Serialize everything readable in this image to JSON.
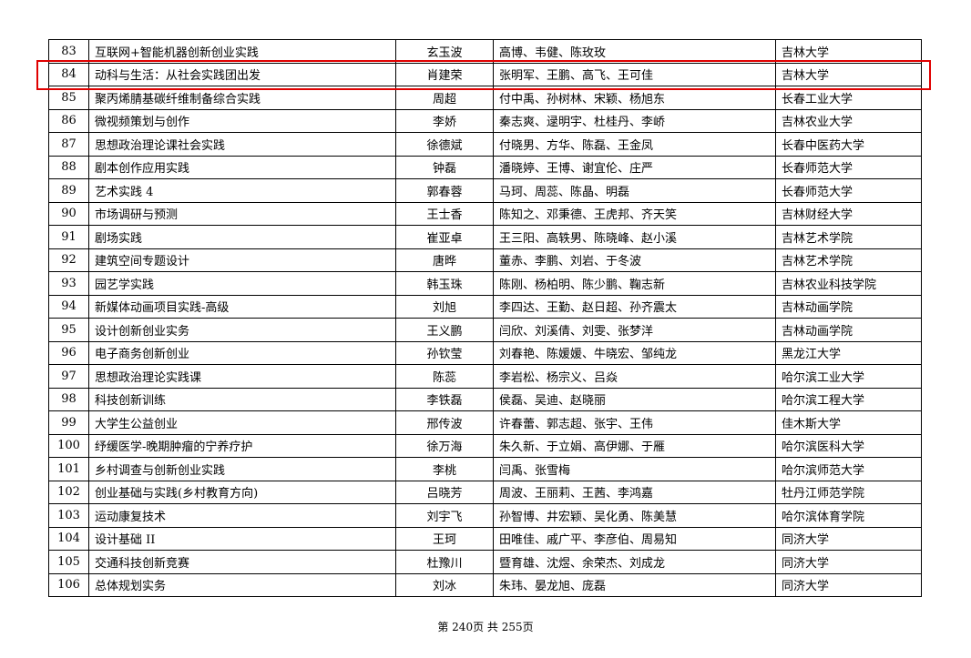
{
  "highlight_color": "#e00000",
  "highlighted_row": "84",
  "rows": [
    [
      "83",
      "互联网+智能机器创新创业实践",
      "玄玉波",
      "高博、韦健、陈玫玫",
      "吉林大学"
    ],
    [
      "84",
      "动科与生活：从社会实践团出发",
      "肖建荣",
      "张明军、王鹏、高飞、王可佳",
      "吉林大学"
    ],
    [
      "85",
      "聚丙烯腈基碳纤维制备综合实践",
      "周超",
      "付中禹、孙树林、宋颖、杨旭东",
      "长春工业大学"
    ],
    [
      "86",
      "微视频策划与创作",
      "李娇",
      "秦志爽、逯明宇、杜桂丹、李峤",
      "吉林农业大学"
    ],
    [
      "87",
      "思想政治理论课社会实践",
      "徐德斌",
      "付晓男、方华、陈磊、王金凤",
      "长春中医药大学"
    ],
    [
      "88",
      "剧本创作应用实践",
      "钟磊",
      "潘晓婷、王博、谢宜伦、庄严",
      "长春师范大学"
    ],
    [
      "89",
      "艺术实践 4",
      "郭春蓉",
      "马珂、周蕊、陈晶、明磊",
      "长春师范大学"
    ],
    [
      "90",
      "市场调研与预测",
      "王士香",
      "陈知之、邓秉德、王虎邦、齐天笑",
      "吉林财经大学"
    ],
    [
      "91",
      "剧场实践",
      "崔亚卓",
      "王三阳、高轶男、陈晓峰、赵小溪",
      "吉林艺术学院"
    ],
    [
      "92",
      "建筑空间专题设计",
      "唐晔",
      "董赤、李鹏、刘岩、于冬波",
      "吉林艺术学院"
    ],
    [
      "93",
      "园艺学实践",
      "韩玉珠",
      "陈刚、杨柏明、陈少鹏、鞠志新",
      "吉林农业科技学院"
    ],
    [
      "94",
      "新媒体动画项目实践-高级",
      "刘旭",
      "李四达、王勤、赵日超、孙齐震太",
      "吉林动画学院"
    ],
    [
      "95",
      "设计创新创业实务",
      "王义鹏",
      "闫欣、刘溪倩、刘雯、张梦洋",
      "吉林动画学院"
    ],
    [
      "96",
      "电子商务创新创业",
      "孙钦莹",
      "刘春艳、陈媛媛、牛晓宏、邹纯龙",
      "黑龙江大学"
    ],
    [
      "97",
      "思想政治理论实践课",
      "陈蕊",
      "李岩松、杨宗义、吕焱",
      "哈尔滨工业大学"
    ],
    [
      "98",
      "科技创新训练",
      "李铁磊",
      "侯磊、吴迪、赵晓丽",
      "哈尔滨工程大学"
    ],
    [
      "99",
      "大学生公益创业",
      "邢传波",
      "许春蕾、郭志超、张宇、王伟",
      "佳木斯大学"
    ],
    [
      "100",
      "纾缓医学-晚期肿瘤的宁养疗护",
      "徐万海",
      "朱久新、于立娟、高伊娜、于雁",
      "哈尔滨医科大学"
    ],
    [
      "101",
      "乡村调查与创新创业实践",
      "李桃",
      "闫禹、张雪梅",
      "哈尔滨师范大学"
    ],
    [
      "102",
      "创业基础与实践(乡村教育方向)",
      "吕晓芳",
      "周波、王丽莉、王茜、李鸿嘉",
      "牡丹江师范学院"
    ],
    [
      "103",
      "运动康复技术",
      "刘宇飞",
      "孙智博、井宏颖、吴化勇、陈美慧",
      "哈尔滨体育学院"
    ],
    [
      "104",
      "设计基础 II",
      "王珂",
      "田唯佳、戚广平、李彦伯、周易知",
      "同济大学"
    ],
    [
      "105",
      "交通科技创新竞赛",
      "杜豫川",
      "暨育雄、沈煜、余荣杰、刘成龙",
      "同济大学"
    ],
    [
      "106",
      "总体规划实务",
      "刘冰",
      "朱玮、晏龙旭、庞磊",
      "同济大学"
    ]
  ],
  "footer": "第 240页  共 255页"
}
